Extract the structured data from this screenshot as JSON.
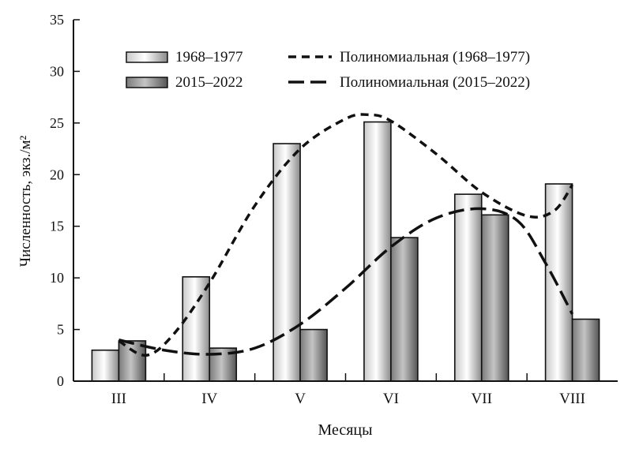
{
  "chart_data": {
    "type": "bar",
    "xlabel": "Месяцы",
    "ylabel": "Численность, экз./м²",
    "ylim": [
      0,
      35
    ],
    "yticks": [
      0,
      5,
      10,
      15,
      20,
      25,
      30,
      35
    ],
    "categories": [
      "III",
      "IV",
      "V",
      "VI",
      "VII",
      "VIII"
    ],
    "grid": false,
    "legend_position": "top",
    "series": [
      {
        "name": "1968–1977",
        "values": [
          3.0,
          10.1,
          23.0,
          25.1,
          18.1,
          19.1
        ],
        "color": "#e8e8e8"
      },
      {
        "name": "2015–2022",
        "values": [
          3.9,
          3.2,
          5.0,
          13.9,
          16.1,
          6.0
        ],
        "color": "#9a9a9a"
      }
    ],
    "trendlines": [
      {
        "name": "Полиномиальная (1968–1977)",
        "style": "short-dash",
        "points": [
          [
            1,
            3.9
          ],
          [
            1.3,
            2.5
          ],
          [
            1.6,
            4.5
          ],
          [
            2,
            9.5
          ],
          [
            2.5,
            17
          ],
          [
            3,
            22.5
          ],
          [
            3.5,
            25.4
          ],
          [
            3.75,
            25.8
          ],
          [
            4,
            25.2
          ],
          [
            4.5,
            22
          ],
          [
            5,
            18.3
          ],
          [
            5.5,
            16
          ],
          [
            5.8,
            16.5
          ],
          [
            6,
            19
          ]
        ]
      },
      {
        "name": "Полиномиальная (2015–2022)",
        "style": "long-dash",
        "points": [
          [
            1,
            4
          ],
          [
            1.5,
            3
          ],
          [
            2,
            2.6
          ],
          [
            2.5,
            3.2
          ],
          [
            3,
            5.5
          ],
          [
            3.5,
            9
          ],
          [
            4,
            13
          ],
          [
            4.5,
            15.8
          ],
          [
            5,
            16.7
          ],
          [
            5.4,
            15.5
          ],
          [
            5.7,
            11.5
          ],
          [
            6,
            6.5
          ]
        ]
      }
    ]
  }
}
